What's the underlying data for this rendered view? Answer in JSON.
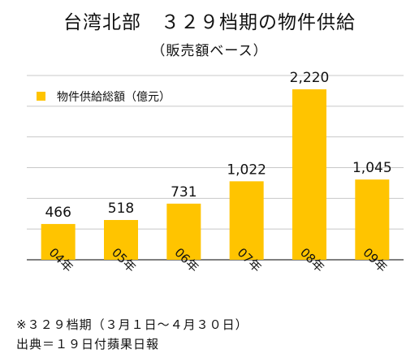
{
  "title": "台湾北部　３２９档期の物件供給",
  "subtitle": "（販売額ベース）",
  "chart_data": {
    "type": "bar",
    "categories": [
      "04年",
      "05年",
      "06年",
      "07年",
      "08年",
      "09年"
    ],
    "series": [
      {
        "name": "物件供給総額（億元）",
        "values": [
          466,
          518,
          731,
          1022,
          2220,
          1045
        ]
      }
    ],
    "data_labels": [
      "466",
      "518",
      "731",
      "1,022",
      "2,220",
      "1,045"
    ],
    "ylim": [
      0,
      2400
    ],
    "grid": true,
    "legend": "top-left",
    "bar_color": "#FFC400",
    "grid_color": "#c8c8c8"
  },
  "footnotes": [
    "※３２９档期（３月１日～４月３０日）",
    "出典＝１９日付蘋果日報"
  ]
}
